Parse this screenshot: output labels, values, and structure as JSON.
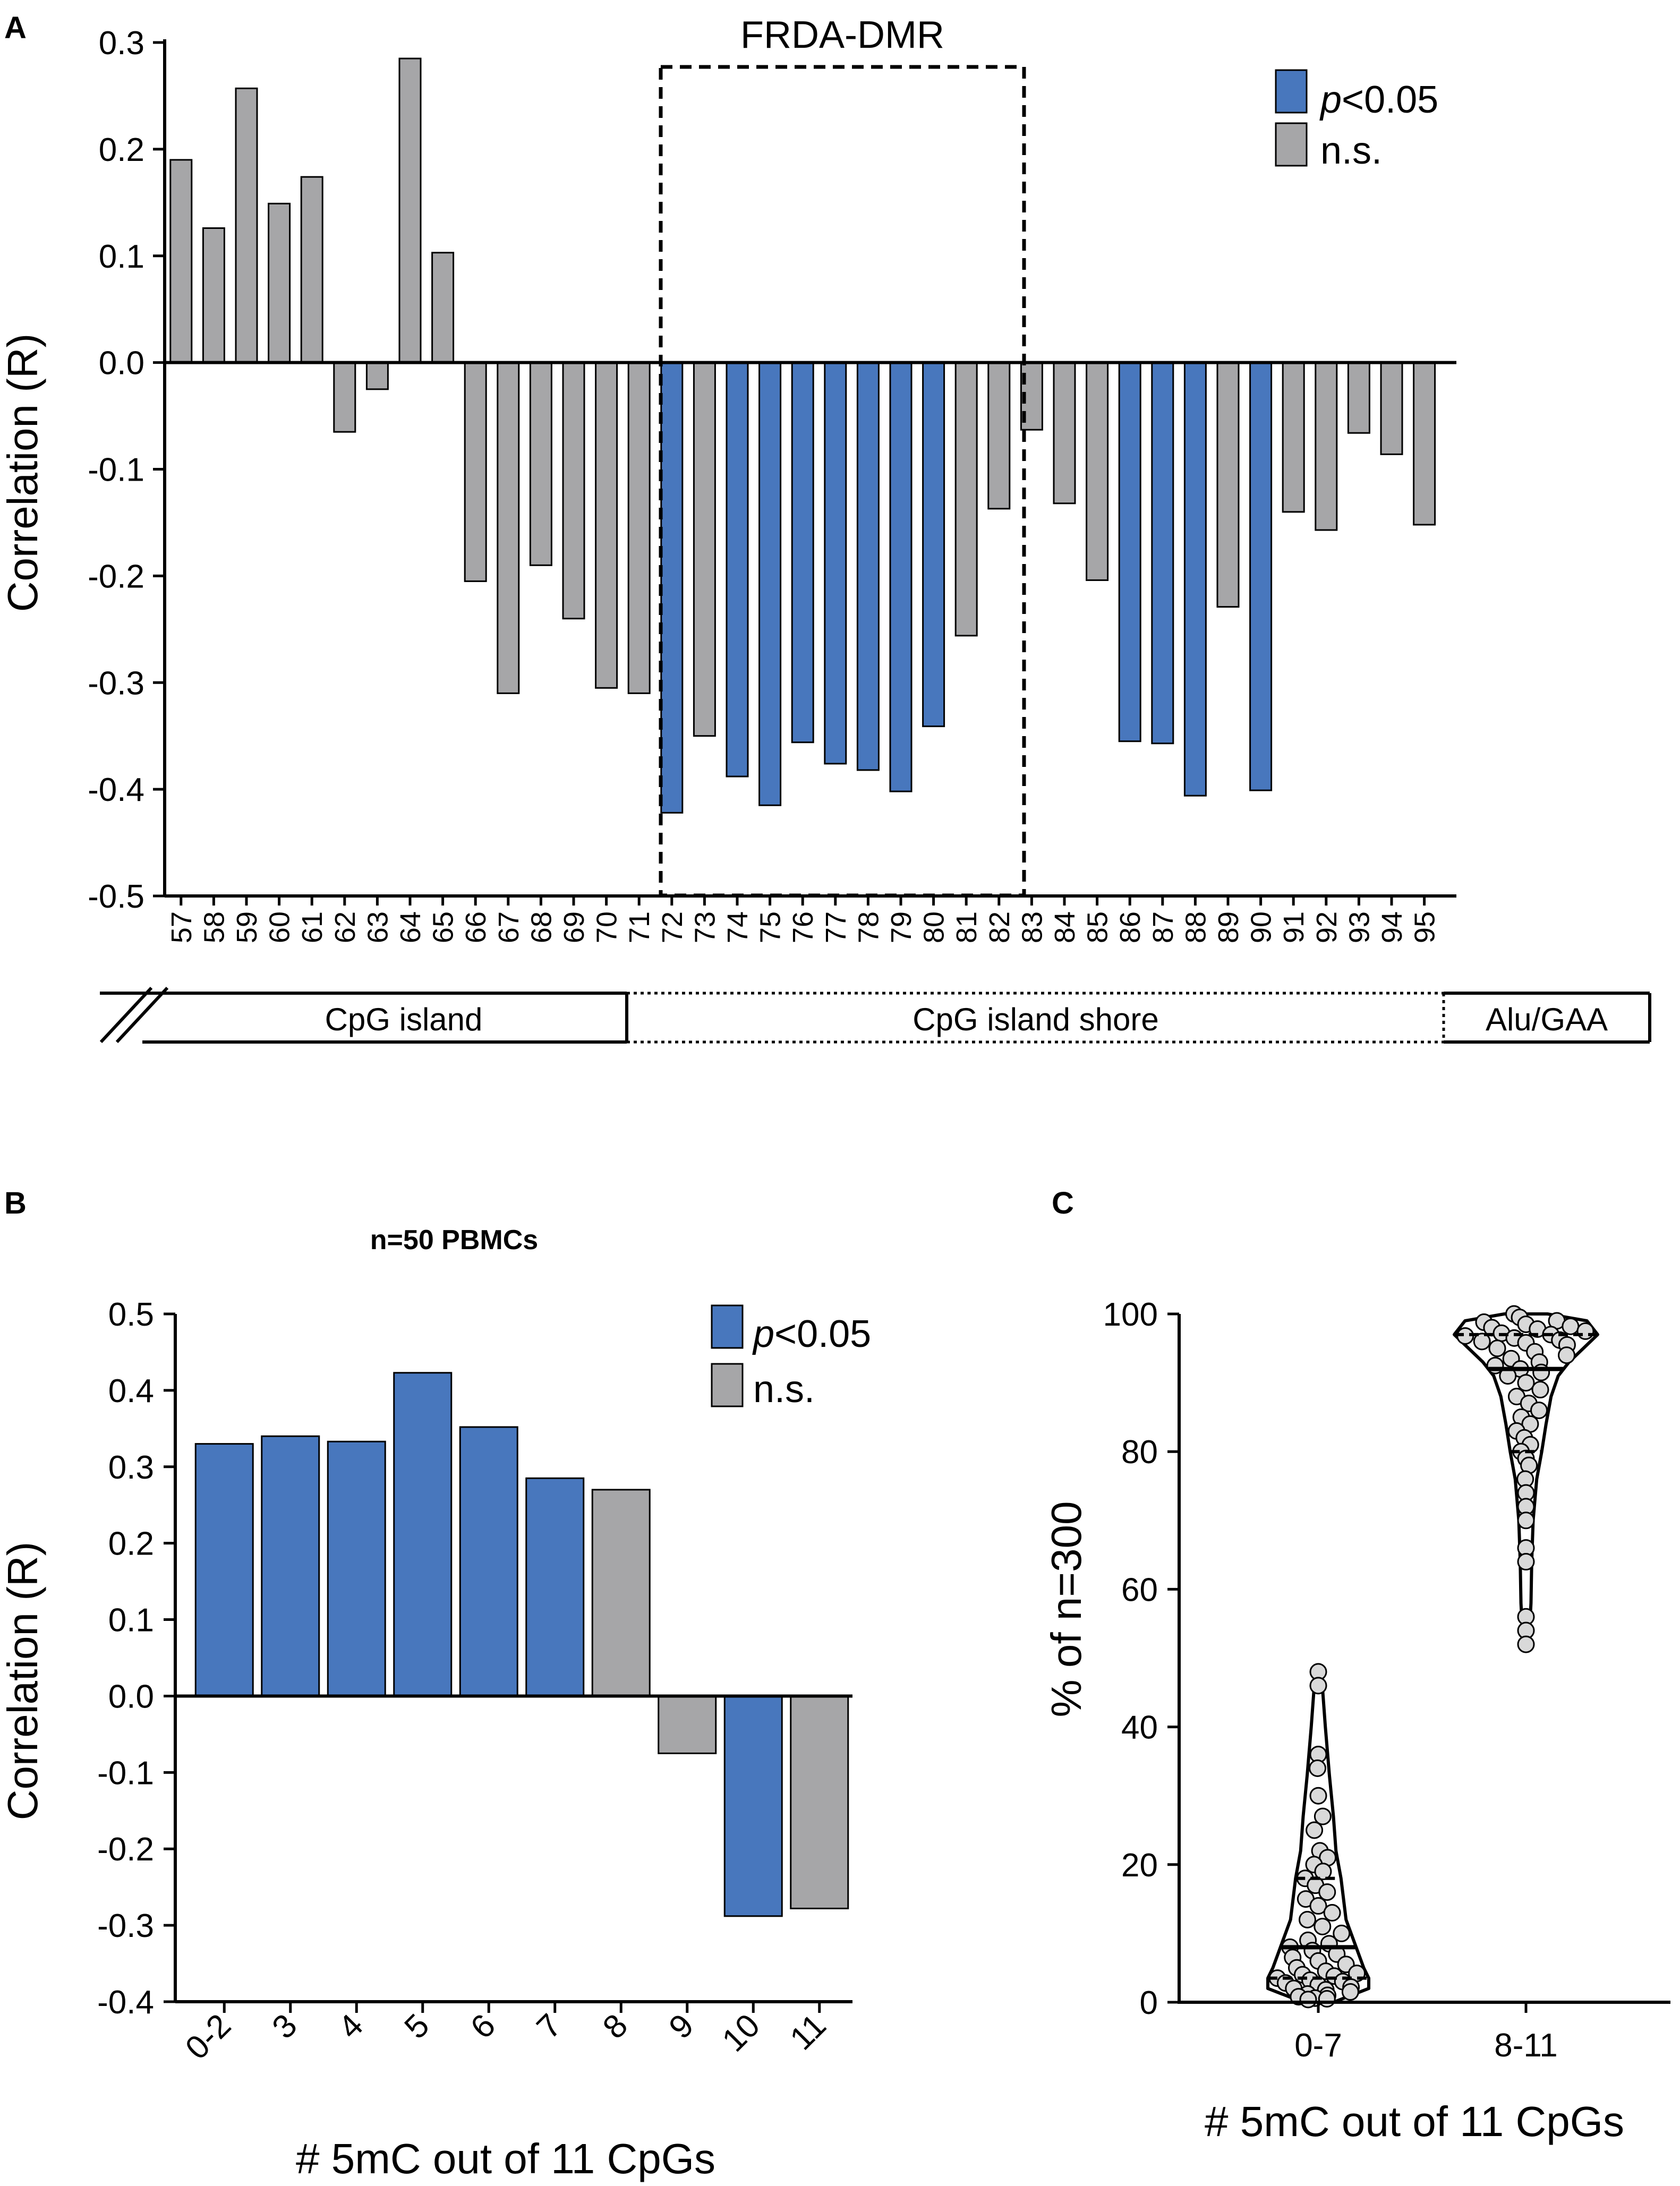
{
  "colors": {
    "sig": "#4877bd",
    "ns": "#a6a6a8",
    "point": "#d9d9d9"
  },
  "panels": {
    "A": {
      "label": "A",
      "box_label": "FRDA-DMR",
      "legend": {
        "p_italic": "p",
        "p_rest": "<0.05",
        "ns": "n.s."
      },
      "regions": [
        "CpG island",
        "CpG island shore",
        "Alu/GAA"
      ]
    },
    "B": {
      "label": "B",
      "subtitle": "n=50 PBMCs",
      "legend": {
        "p_italic": "p",
        "p_rest": "<0.05",
        "ns": "n.s."
      }
    },
    "C": {
      "label": "C"
    }
  },
  "chart_data": [
    {
      "panel": "A",
      "type": "bar",
      "title": "",
      "ylabel": "Correlation (R)",
      "xlabel": "",
      "ylim": [
        -0.5,
        0.3
      ],
      "yticks": [
        "0.3",
        "0.2",
        "0.1",
        "0.0",
        "-0.1",
        "-0.2",
        "-0.3",
        "-0.4",
        "-0.5"
      ],
      "categories": [
        "57",
        "58",
        "59",
        "60",
        "61",
        "62",
        "63",
        "64",
        "65",
        "66",
        "67",
        "68",
        "69",
        "70",
        "71",
        "72",
        "73",
        "74",
        "75",
        "76",
        "77",
        "78",
        "79",
        "80",
        "81",
        "82",
        "83",
        "84",
        "85",
        "86",
        "87",
        "88",
        "89",
        "90",
        "91",
        "92",
        "93",
        "94",
        "95"
      ],
      "values": [
        0.19,
        0.126,
        0.257,
        0.149,
        0.174,
        -0.065,
        -0.025,
        0.285,
        0.103,
        -0.205,
        -0.31,
        -0.19,
        -0.24,
        -0.305,
        -0.31,
        -0.422,
        -0.35,
        -0.388,
        -0.415,
        -0.356,
        -0.376,
        -0.382,
        -0.402,
        -0.341,
        -0.256,
        -0.137,
        -0.063,
        -0.132,
        -0.204,
        -0.355,
        -0.357,
        -0.406,
        -0.229,
        -0.401,
        -0.14,
        -0.157,
        -0.066,
        -0.086,
        -0.152
      ],
      "significant": [
        false,
        false,
        false,
        false,
        false,
        false,
        false,
        false,
        false,
        false,
        false,
        false,
        false,
        false,
        false,
        true,
        false,
        true,
        true,
        true,
        true,
        true,
        true,
        true,
        false,
        false,
        false,
        false,
        false,
        true,
        true,
        true,
        false,
        true,
        false,
        false,
        false,
        false,
        false
      ],
      "annotation": {
        "label": "FRDA-DMR",
        "range": [
          "72",
          "82"
        ]
      }
    },
    {
      "panel": "B",
      "type": "bar",
      "title": "n=50 PBMCs",
      "ylabel": "Correlation (R)",
      "xlabel": "# 5mC out of 11 CpGs",
      "ylim": [
        -0.4,
        0.5
      ],
      "yticks": [
        "0.5",
        "0.4",
        "0.3",
        "0.2",
        "0.1",
        "0.0",
        "-0.1",
        "-0.2",
        "-0.3",
        "-0.4"
      ],
      "categories": [
        "0-2",
        "3",
        "4",
        "5",
        "6",
        "7",
        "8",
        "9",
        "10",
        "11"
      ],
      "values": [
        0.33,
        0.34,
        0.333,
        0.423,
        0.352,
        0.285,
        0.27,
        -0.075,
        -0.288,
        -0.278
      ],
      "significant": [
        true,
        true,
        true,
        true,
        true,
        true,
        false,
        false,
        true,
        false
      ]
    },
    {
      "panel": "C",
      "type": "scatter",
      "subtype": "violin",
      "ylabel": "% of n=300",
      "xlabel": "# 5mC out of 11 CpGs",
      "ylim": [
        0,
        100
      ],
      "yticks": [
        "0",
        "20",
        "40",
        "60",
        "80",
        "100"
      ],
      "categories": [
        "0-7",
        "8-11"
      ],
      "series": [
        {
          "name": "0-7",
          "median": 8,
          "q1": 3.5,
          "q3": 18,
          "values": [
            48,
            46,
            36,
            34,
            30,
            27,
            25,
            22,
            21,
            20,
            19,
            18,
            17,
            16,
            15,
            14,
            13,
            12,
            11,
            10,
            9,
            8.5,
            8,
            7.5,
            7,
            6.5,
            6,
            5.5,
            5,
            4.5,
            4.2,
            4,
            3.8,
            3.5,
            3.2,
            3,
            2.8,
            2.5,
            2.2,
            2,
            1.8,
            1.5,
            1.2,
            1,
            0.8,
            0.6,
            0.5,
            0.4
          ]
        },
        {
          "name": "8-11",
          "median": 92,
          "q1": 80,
          "q3": 97,
          "values": [
            100,
            99.5,
            99,
            98.8,
            98.5,
            98.2,
            98,
            97.8,
            97.5,
            97.2,
            97,
            96.8,
            96.5,
            96.2,
            96,
            95.8,
            95.5,
            95,
            94.5,
            94,
            93.5,
            93,
            92.5,
            92,
            91.5,
            91,
            90,
            89,
            88,
            87,
            86,
            85,
            84,
            83,
            82,
            81,
            80,
            79,
            78,
            76,
            74,
            72,
            70,
            66,
            64,
            56,
            54,
            52
          ]
        }
      ]
    }
  ]
}
